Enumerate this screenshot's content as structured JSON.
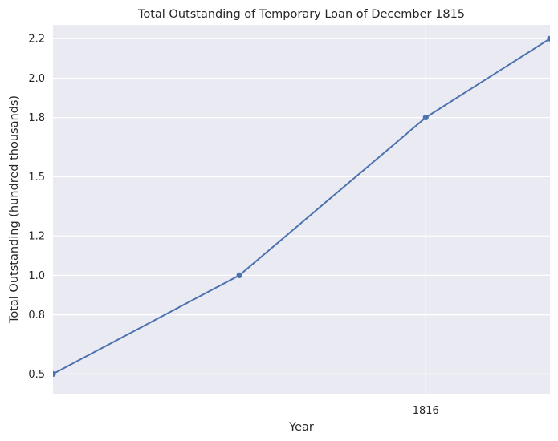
{
  "chart_data": {
    "type": "line",
    "title": "Total Outstanding of Temporary Loan of December 1815",
    "xlabel": "Year",
    "ylabel": "Total Outstanding (hundred thousands)",
    "x_ticks": [
      {
        "value": 3,
        "label": "1816"
      }
    ],
    "y_ticks": [
      0.5,
      0.8,
      1.0,
      1.2,
      1.5,
      1.8,
      2.0,
      2.2
    ],
    "xlim": [
      0,
      4
    ],
    "ylim": [
      0.4,
      2.27
    ],
    "grid": true,
    "series": [
      {
        "color": "#4c72b0",
        "points": [
          {
            "x": 0,
            "y": 0.5
          },
          {
            "x": 1.5,
            "y": 1.0
          },
          {
            "x": 3,
            "y": 1.8
          },
          {
            "x": 4,
            "y": 2.2
          }
        ]
      }
    ],
    "colors": {
      "background": "#eaeaf2",
      "grid": "#ffffff",
      "text": "#262626"
    }
  }
}
